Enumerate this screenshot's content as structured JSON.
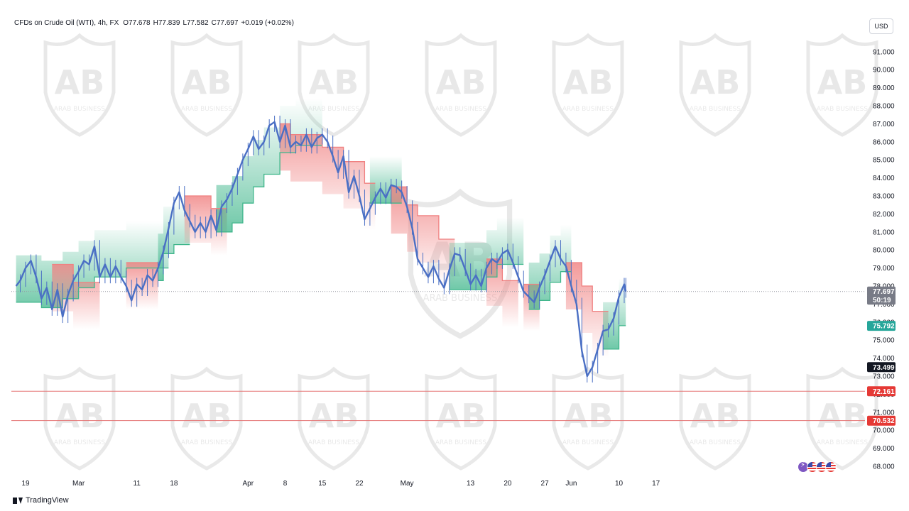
{
  "legend": {
    "symbol": "CFDs on Crude Oil (WTI), 4h, FX",
    "open": "O77.678",
    "high": "H77.839",
    "low": "L77.582",
    "close": "C77.697",
    "change": "+0.019 (+0.02%)"
  },
  "currency": "USD",
  "branding": {
    "platform": "TradingView"
  },
  "watermark": {
    "text": "ARAB BUSINESS"
  },
  "colors": {
    "candle": "#4a6fc4",
    "stop_down": "#f08080",
    "stop_up": "#3fb68b",
    "level_line": "#e57373",
    "current_price_line": "#9598a1"
  },
  "icons": [
    "lightning-bolt-icon",
    "us-flag-icon",
    "us-flag-icon",
    "us-flag-icon"
  ],
  "chart_data": {
    "type": "line",
    "title": "CFDs on Crude Oil (WTI), 4h, FX",
    "xlabel": "",
    "ylabel": "",
    "ylim": [
      67.5,
      92.3
    ],
    "y_ticks": [
      "68.000",
      "69.000",
      "70.000",
      "71.000",
      "72.000",
      "73.000",
      "74.000",
      "75.000",
      "76.000",
      "77.000",
      "78.000",
      "79.000",
      "80.000",
      "81.000",
      "82.000",
      "83.000",
      "84.000",
      "85.000",
      "86.000",
      "87.000",
      "88.000",
      "89.000",
      "90.000",
      "91.000"
    ],
    "x_ticks": [
      {
        "label": "19",
        "day": 0
      },
      {
        "label": "Mar",
        "day": 10
      },
      {
        "label": "11",
        "day": 21
      },
      {
        "label": "18",
        "day": 28
      },
      {
        "label": "Apr",
        "day": 42
      },
      {
        "label": "8",
        "day": 49
      },
      {
        "label": "15",
        "day": 56
      },
      {
        "label": "22",
        "day": 63
      },
      {
        "label": "May",
        "day": 72
      },
      {
        "label": "13",
        "day": 84
      },
      {
        "label": "20",
        "day": 91
      },
      {
        "label": "27",
        "day": 98
      },
      {
        "label": "Jun",
        "day": 103
      },
      {
        "label": "10",
        "day": 112
      },
      {
        "label": "17",
        "day": 119
      }
    ],
    "price_series": {
      "name": "",
      "points": [
        [
          -1.8,
          78.0
        ],
        [
          -1,
          78.3
        ],
        [
          0,
          79.0
        ],
        [
          1,
          79.4
        ],
        [
          2,
          78.5
        ],
        [
          3,
          77.3
        ],
        [
          4,
          77.9
        ],
        [
          5,
          76.7
        ],
        [
          6,
          77.8
        ],
        [
          7,
          76.3
        ],
        [
          8,
          77.5
        ],
        [
          9,
          78.3
        ],
        [
          10,
          78.8
        ],
        [
          11,
          79.4
        ],
        [
          12,
          79.2
        ],
        [
          13,
          80.2
        ],
        [
          14,
          78.5
        ],
        [
          15,
          79.2
        ],
        [
          16,
          78.5
        ],
        [
          17,
          79.1
        ],
        [
          18,
          78.5
        ],
        [
          19,
          78.0
        ],
        [
          20,
          77.2
        ],
        [
          21,
          78.1
        ],
        [
          22,
          77.8
        ],
        [
          23,
          78.6
        ],
        [
          24,
          78.3
        ],
        [
          25,
          79.0
        ],
        [
          26,
          79.9
        ],
        [
          27,
          81.2
        ],
        [
          28,
          82.6
        ],
        [
          29,
          83.2
        ],
        [
          30,
          82.2
        ],
        [
          31,
          81.6
        ],
        [
          32,
          81.0
        ],
        [
          33,
          81.5
        ],
        [
          34,
          81.0
        ],
        [
          35,
          81.9
        ],
        [
          36,
          81.1
        ],
        [
          37,
          82.4
        ],
        [
          38,
          82.8
        ],
        [
          39,
          83.4
        ],
        [
          40,
          84.2
        ],
        [
          41,
          85.0
        ],
        [
          42,
          85.6
        ],
        [
          43,
          86.3
        ],
        [
          44,
          85.6
        ],
        [
          45,
          86.0
        ],
        [
          46,
          86.9
        ],
        [
          47,
          87.1
        ],
        [
          48,
          86.0
        ],
        [
          49,
          86.9
        ],
        [
          50,
          85.7
        ],
        [
          51,
          86.0
        ],
        [
          52,
          85.8
        ],
        [
          53,
          86.4
        ],
        [
          54,
          85.7
        ],
        [
          55,
          86.2
        ],
        [
          56,
          86.4
        ],
        [
          57,
          86.0
        ],
        [
          58,
          85.2
        ],
        [
          59,
          84.3
        ],
        [
          60,
          85.2
        ],
        [
          61,
          83.2
        ],
        [
          62,
          84.1
        ],
        [
          63,
          83.0
        ],
        [
          64,
          81.7
        ],
        [
          65,
          82.3
        ],
        [
          66,
          82.9
        ],
        [
          67,
          83.4
        ],
        [
          68,
          82.9
        ],
        [
          69,
          83.6
        ],
        [
          70,
          83.5
        ],
        [
          71,
          83.2
        ],
        [
          72,
          82.4
        ],
        [
          73,
          81.2
        ],
        [
          74,
          79.5
        ],
        [
          75,
          79.0
        ],
        [
          76,
          78.5
        ],
        [
          77,
          79.1
        ],
        [
          78,
          78.4
        ],
        [
          79,
          77.9
        ],
        [
          80,
          78.9
        ],
        [
          81,
          79.8
        ],
        [
          82,
          79.7
        ],
        [
          83,
          78.9
        ],
        [
          84,
          78.1
        ],
        [
          85,
          78.6
        ],
        [
          86,
          78.0
        ],
        [
          87,
          79.0
        ],
        [
          88,
          79.5
        ],
        [
          89,
          79.3
        ],
        [
          90,
          79.8
        ],
        [
          91,
          80.0
        ],
        [
          92,
          79.3
        ],
        [
          93,
          78.5
        ],
        [
          94,
          77.7
        ],
        [
          95,
          77.4
        ],
        [
          96,
          77.1
        ],
        [
          97,
          77.9
        ],
        [
          98,
          78.6
        ],
        [
          99,
          79.4
        ],
        [
          100,
          80.2
        ],
        [
          101,
          79.5
        ],
        [
          102,
          79.1
        ],
        [
          103,
          78.0
        ],
        [
          104,
          77.0
        ],
        [
          105,
          74.4
        ],
        [
          106,
          73.0
        ],
        [
          107,
          73.5
        ],
        [
          108,
          74.5
        ],
        [
          109,
          75.5
        ],
        [
          110,
          75.6
        ],
        [
          111,
          76.2
        ],
        [
          112,
          77.4
        ],
        [
          113,
          78.1
        ],
        [
          113.3,
          77.7
        ]
      ]
    },
    "trailing_stop_series": {
      "name": "",
      "segments": [
        {
          "direction": "up",
          "points": [
            [
              -1.8,
              77.1
            ],
            [
              3,
              77.1
            ],
            [
              3,
              76.8
            ],
            [
              7,
              76.8
            ],
            [
              7,
              77.3
            ],
            [
              10,
              77.3
            ],
            [
              10,
              77.9
            ],
            [
              13,
              77.9
            ],
            [
              13,
              78.5
            ],
            [
              19,
              78.5
            ],
            [
              19,
              79.0
            ],
            [
              27,
              79.0
            ]
          ]
        },
        {
          "direction": "down",
          "points": [
            [
              5,
              79.2
            ],
            [
              9,
              79.2
            ],
            [
              9,
              78.2
            ],
            [
              14,
              78.2
            ]
          ]
        },
        {
          "direction": "down",
          "points": [
            [
              19,
              79.3
            ],
            [
              25,
              79.3
            ]
          ]
        },
        {
          "direction": "up",
          "points": [
            [
              25,
              78.3
            ],
            [
              26,
              78.3
            ],
            [
              26,
              79.8
            ],
            [
              28,
              79.8
            ],
            [
              28,
              80.3
            ],
            [
              31,
              80.3
            ]
          ]
        },
        {
          "direction": "down",
          "points": [
            [
              30,
              83.0
            ],
            [
              35,
              83.0
            ],
            [
              35,
              82.3
            ],
            [
              38,
              82.3
            ]
          ]
        },
        {
          "direction": "up",
          "points": [
            [
              36,
              81.0
            ],
            [
              39,
              81.0
            ],
            [
              39,
              81.5
            ],
            [
              41,
              81.5
            ],
            [
              41,
              82.6
            ],
            [
              43,
              82.6
            ],
            [
              43,
              83.5
            ],
            [
              45,
              83.5
            ],
            [
              45,
              84.2
            ],
            [
              48,
              84.2
            ],
            [
              48,
              85.4
            ],
            [
              51,
              85.4
            ],
            [
              51,
              85.8
            ],
            [
              56,
              85.8
            ]
          ]
        },
        {
          "direction": "down",
          "points": [
            [
              48,
              87.0
            ],
            [
              50,
              87.0
            ],
            [
              50,
              86.4
            ],
            [
              56,
              86.4
            ],
            [
              56,
              85.7
            ],
            [
              60,
              85.7
            ],
            [
              60,
              84.9
            ],
            [
              64,
              84.9
            ],
            [
              64,
              83.7
            ],
            [
              66,
              83.7
            ]
          ]
        },
        {
          "direction": "up",
          "points": [
            [
              65,
              82.6
            ],
            [
              71,
              82.6
            ]
          ]
        },
        {
          "direction": "down",
          "points": [
            [
              69,
              83.5
            ],
            [
              72,
              83.5
            ],
            [
              72,
              82.5
            ],
            [
              74,
              82.5
            ],
            [
              74,
              81.9
            ],
            [
              78,
              81.9
            ],
            [
              78,
              80.6
            ],
            [
              81,
              80.6
            ]
          ]
        },
        {
          "direction": "up",
          "points": [
            [
              80,
              77.8
            ],
            [
              87,
              77.8
            ],
            [
              87,
              78.5
            ],
            [
              89,
              78.5
            ],
            [
              89,
              79.2
            ],
            [
              94,
              79.2
            ]
          ]
        },
        {
          "direction": "down",
          "points": [
            [
              87,
              79.5
            ],
            [
              90,
              79.5
            ],
            [
              90,
              78.3
            ],
            [
              93,
              78.3
            ]
          ]
        },
        {
          "direction": "down",
          "points": [
            [
              94,
              78.1
            ],
            [
              97,
              78.1
            ]
          ]
        },
        {
          "direction": "up",
          "points": [
            [
              95,
              76.7
            ],
            [
              97,
              76.7
            ],
            [
              97,
              77.2
            ],
            [
              99,
              77.2
            ],
            [
              99,
              78.2
            ],
            [
              101,
              78.2
            ],
            [
              101,
              78.8
            ],
            [
              103,
              78.8
            ]
          ]
        },
        {
          "direction": "down",
          "points": [
            [
              102,
              79.3
            ],
            [
              105,
              79.3
            ],
            [
              105,
              78.0
            ],
            [
              107,
              78.0
            ],
            [
              107,
              76.6
            ],
            [
              110,
              76.6
            ]
          ]
        },
        {
          "direction": "up",
          "points": [
            [
              109,
              74.5
            ],
            [
              112,
              74.5
            ],
            [
              112,
              75.8
            ],
            [
              113.3,
              75.8
            ]
          ]
        }
      ]
    },
    "horizontal_levels": [
      72.161,
      70.532
    ],
    "current_price": 77.697,
    "price_labels": [
      {
        "text": "77.697",
        "value": 77.697,
        "bg": "#787b86",
        "fg": "#ffffff"
      },
      {
        "text": "50:19",
        "value": 77.24,
        "bg": "#787b86",
        "fg": "#ffffff"
      },
      {
        "text": "75.792",
        "value": 75.792,
        "bg": "#26a69a",
        "fg": "#ffffff"
      },
      {
        "text": "73.499",
        "value": 73.499,
        "bg": "#131722",
        "fg": "#ffffff"
      },
      {
        "text": "72.161",
        "value": 72.161,
        "bg": "#e53935",
        "fg": "#ffffff"
      },
      {
        "text": "70.532",
        "value": 70.532,
        "bg": "#e53935",
        "fg": "#ffffff"
      }
    ]
  }
}
